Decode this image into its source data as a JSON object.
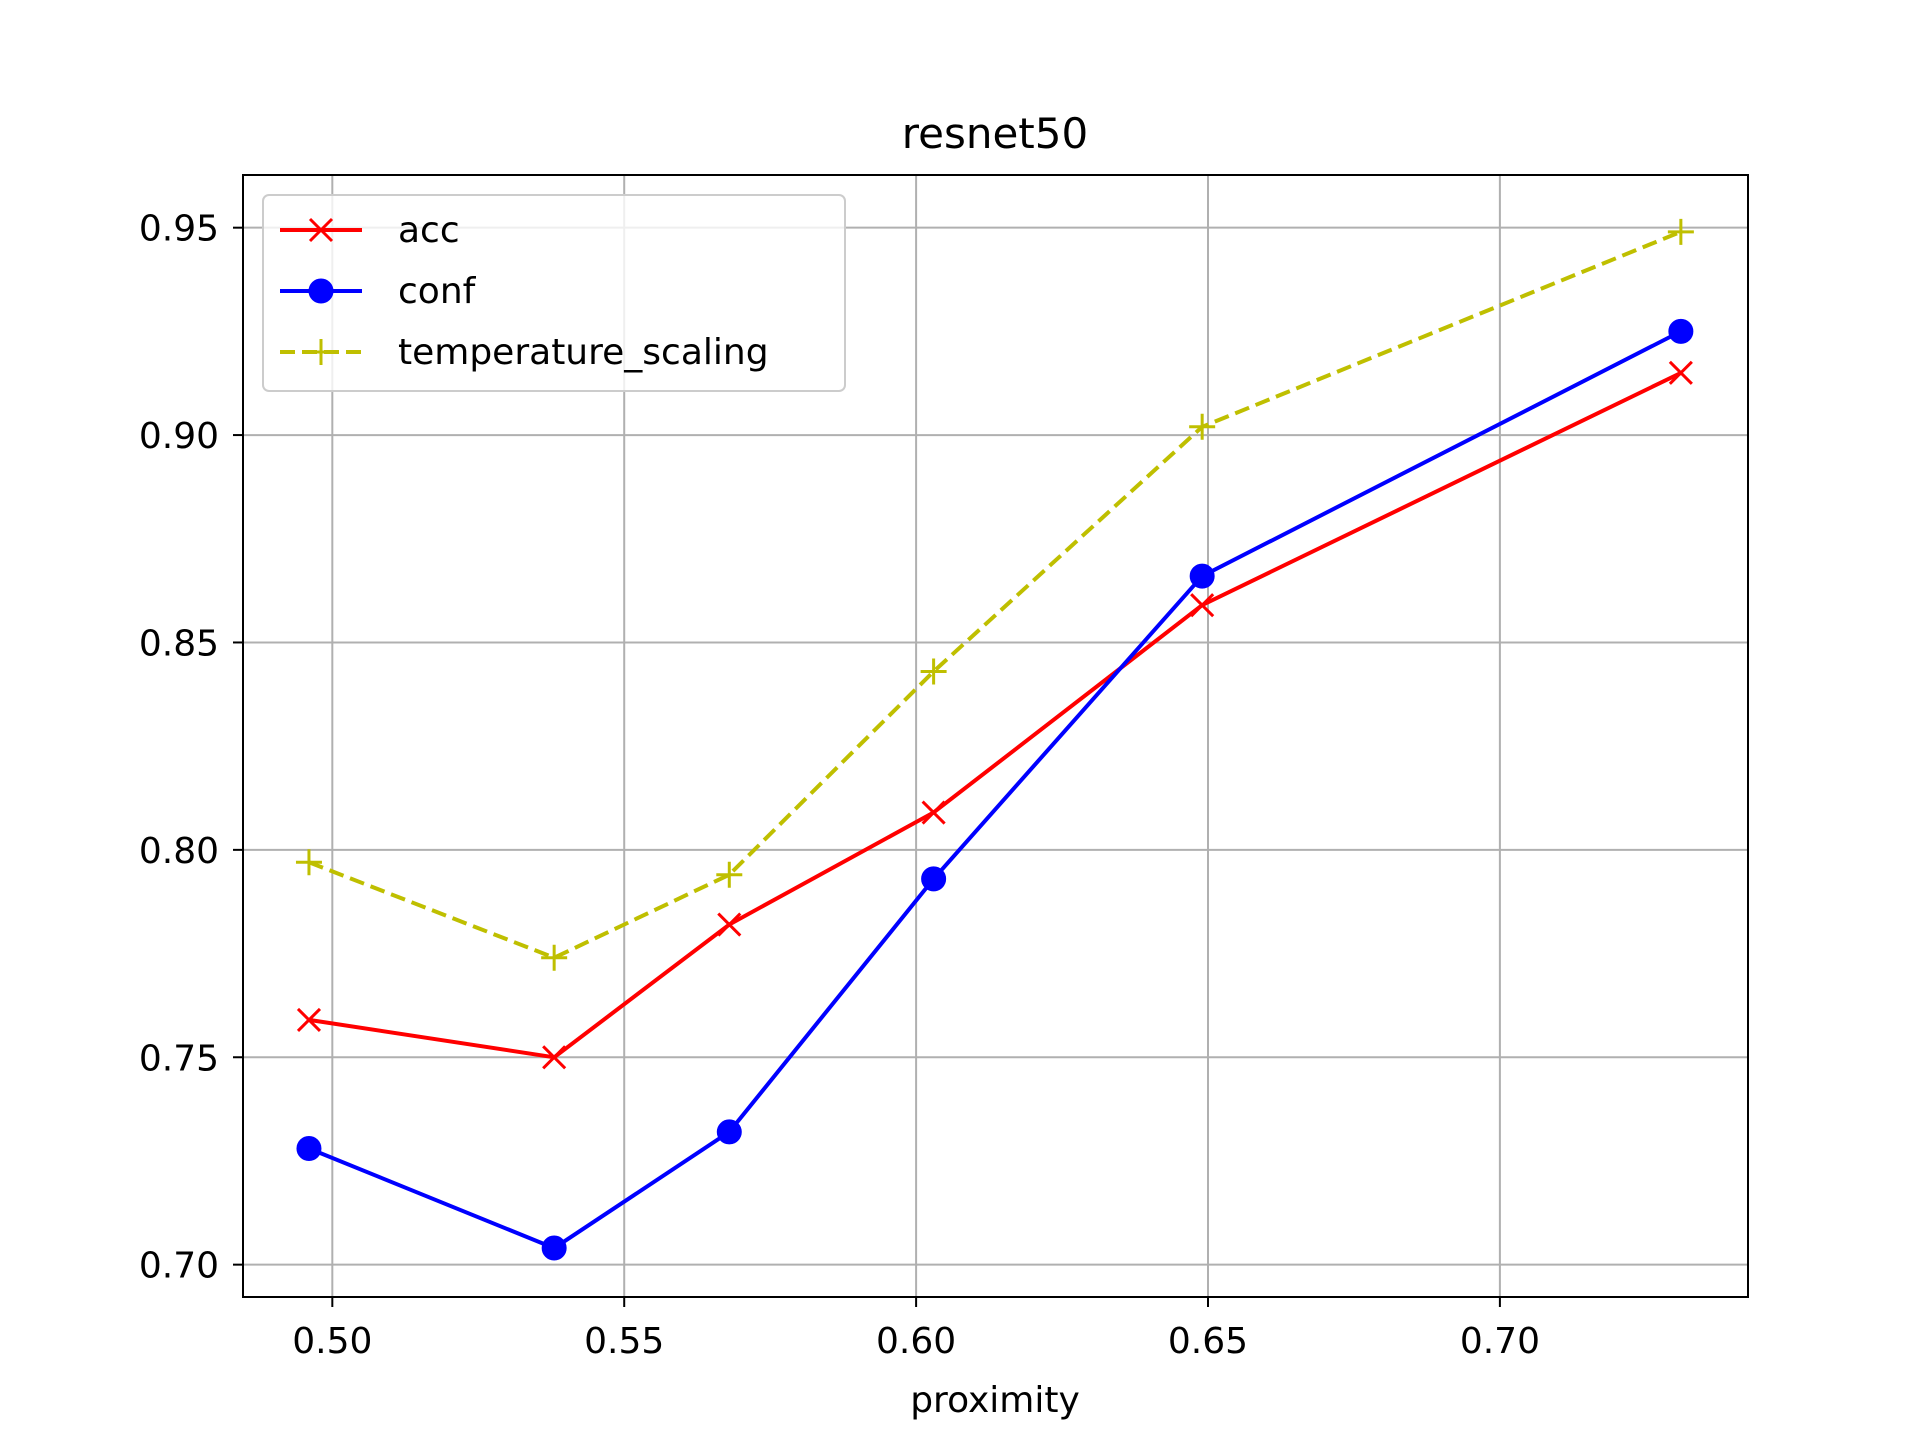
{
  "chart_data": {
    "type": "line",
    "title": "resnet50",
    "xlabel": "proximity",
    "ylabel": "",
    "xlim": [
      0.4847,
      0.7425
    ],
    "ylim": [
      0.6922,
      0.9627
    ],
    "xticks": [
      0.5,
      0.55,
      0.6,
      0.65,
      0.7
    ],
    "xtick_labels": [
      "0.50",
      "0.55",
      "0.60",
      "0.65",
      "0.70"
    ],
    "yticks": [
      0.7,
      0.75,
      0.8,
      0.85,
      0.9,
      0.95
    ],
    "ytick_labels": [
      "0.70",
      "0.75",
      "0.80",
      "0.85",
      "0.90",
      "0.95"
    ],
    "grid": true,
    "legend_position": "top-left",
    "series": [
      {
        "name": "acc",
        "color": "#ff0000",
        "linestyle": "solid",
        "marker": "x",
        "x": [
          0.496,
          0.538,
          0.568,
          0.603,
          0.649,
          0.731
        ],
        "y": [
          0.759,
          0.75,
          0.782,
          0.809,
          0.859,
          0.915
        ]
      },
      {
        "name": "conf",
        "color": "#0000ff",
        "linestyle": "solid",
        "marker": "o",
        "x": [
          0.496,
          0.538,
          0.568,
          0.603,
          0.649,
          0.731
        ],
        "y": [
          0.728,
          0.704,
          0.732,
          0.793,
          0.866,
          0.925
        ]
      },
      {
        "name": "temperature_scaling",
        "color": "#bfbf00",
        "linestyle": "dashed",
        "marker": "+",
        "x": [
          0.496,
          0.538,
          0.568,
          0.603,
          0.649,
          0.731
        ],
        "y": [
          0.797,
          0.774,
          0.794,
          0.843,
          0.902,
          0.949
        ]
      }
    ]
  }
}
